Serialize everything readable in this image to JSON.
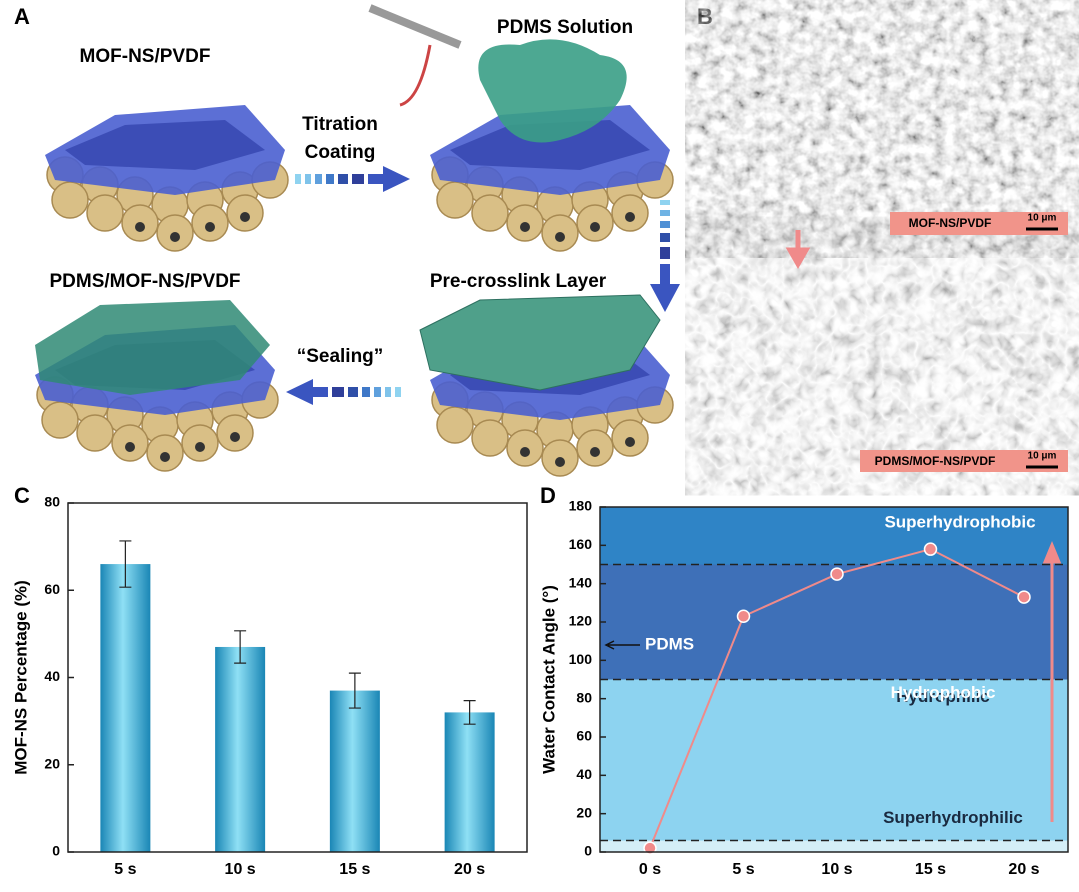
{
  "panel_a": {
    "letter": "A",
    "top_left_label": "MOF-NS/PVDF",
    "arrow1_line1": "Titration",
    "arrow1_line2": "Coating",
    "top_right_label": "PDMS Solution",
    "bottom_right_label": "Pre-crosslink Layer",
    "bottom_left_label": "PDMS/MOF-NS/PVDF",
    "arrow3_label": "“Sealing”"
  },
  "panel_b": {
    "letter": "B",
    "top_caption": "MOF-NS/PVDF",
    "top_scale": "10 μm",
    "bottom_caption": "PDMS/MOF-NS/PVDF",
    "bottom_scale": "10 μm"
  },
  "chart_data": [
    {
      "type": "bar",
      "panel": "C",
      "ylabel": "MOF-NS Percentage (%)",
      "categories": [
        "5 s",
        "10 s",
        "15 s",
        "20 s"
      ],
      "values": [
        66,
        47,
        37,
        32
      ],
      "errors": [
        5.3,
        3.7,
        4,
        2.7
      ],
      "color": "#2aa6cf",
      "ylim": [
        0,
        80
      ],
      "yticks": [
        0,
        20,
        40,
        60,
        80
      ]
    },
    {
      "type": "line",
      "panel": "D",
      "ylabel": "Water Contact Angle (°)",
      "categories": [
        "0 s",
        "5 s",
        "10 s",
        "15 s",
        "20 s"
      ],
      "values": [
        2,
        123,
        145,
        158,
        133
      ],
      "color": "#f08a8a",
      "ylim": [
        0,
        180
      ],
      "yticks": [
        0,
        20,
        40,
        60,
        80,
        100,
        120,
        140,
        160,
        180
      ],
      "regions": [
        {
          "label": "Superhydrophilic",
          "from": 0,
          "to": 6,
          "color": "#d4eef7"
        },
        {
          "label": "Hydrophilic",
          "from": 6,
          "to": 90,
          "color": "#8dd3f0"
        },
        {
          "label": "Hydrophobic",
          "from": 90,
          "to": 150,
          "color": "#3e70b8"
        },
        {
          "label": "Superhydrophobic",
          "from": 150,
          "to": 180,
          "color": "#2f84c6"
        }
      ],
      "annotation": {
        "text": "PDMS",
        "value": 108
      }
    }
  ]
}
